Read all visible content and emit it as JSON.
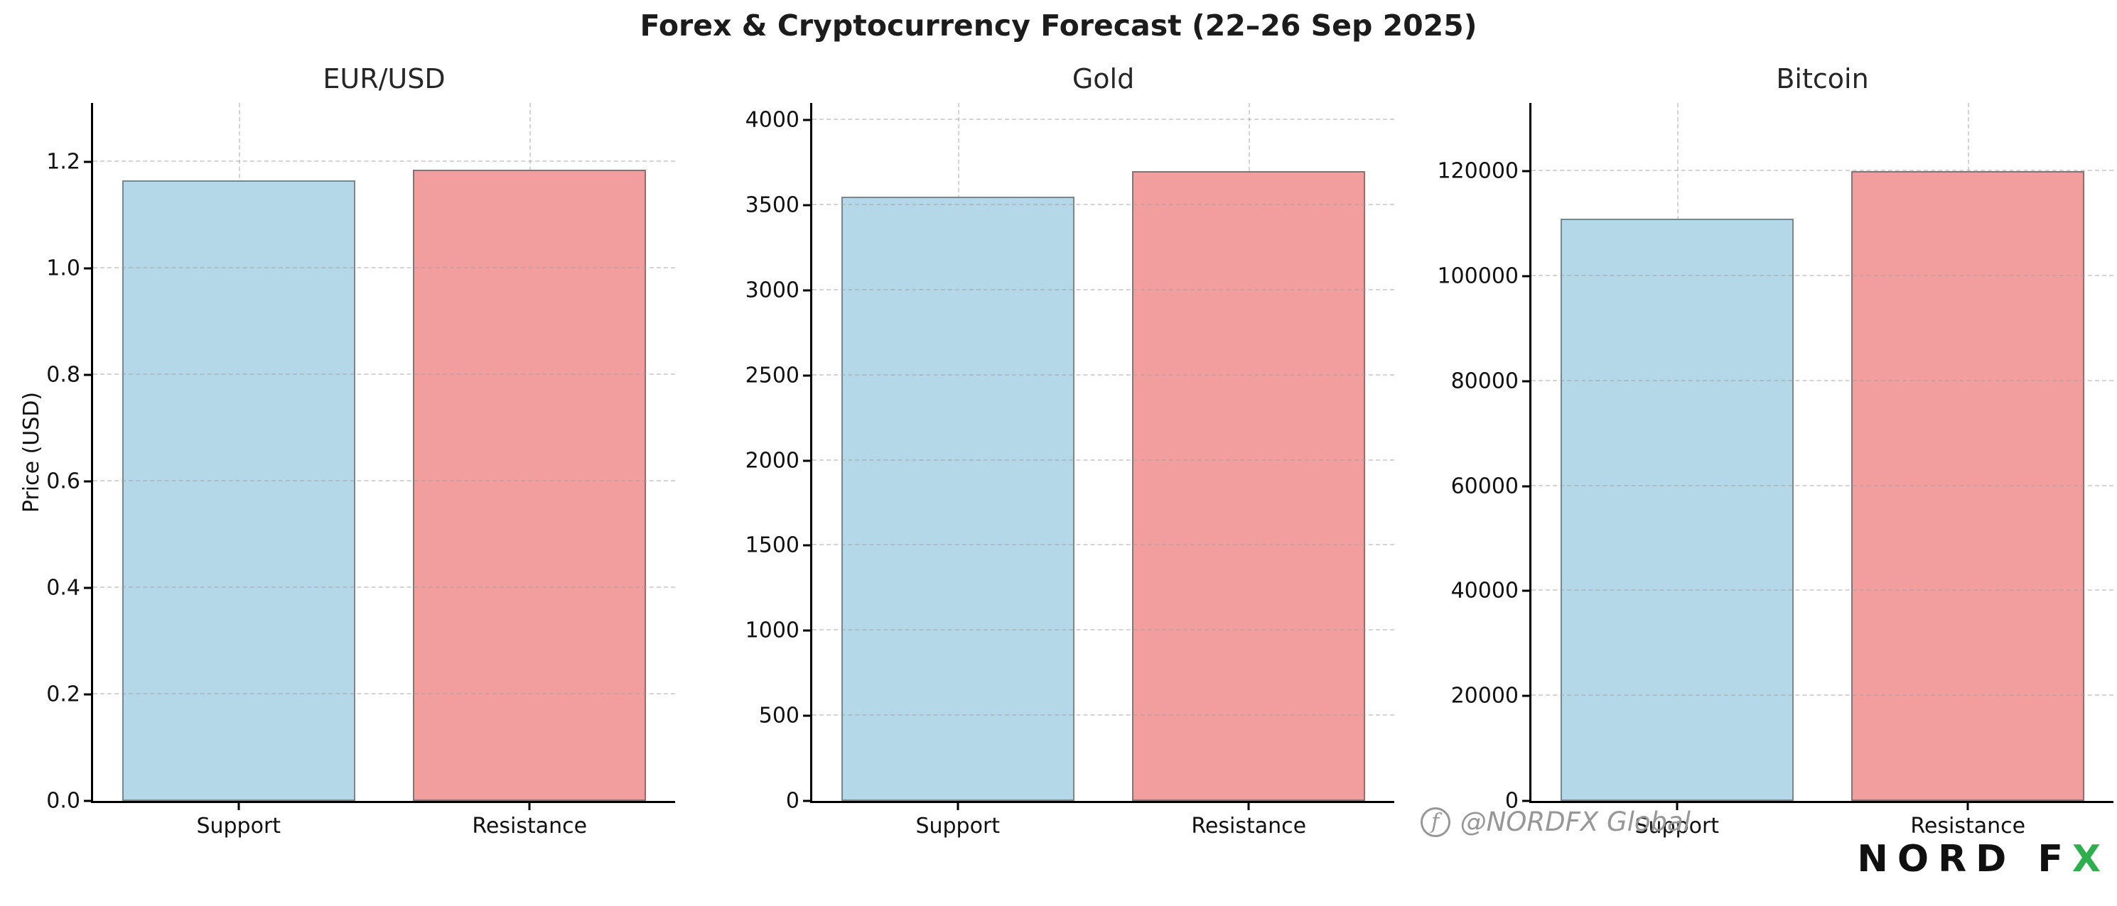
{
  "page": {
    "title": "Forex & Cryptocurrency Forecast (22–26 Sep 2025)"
  },
  "colors": {
    "support_fill": "#b5d8e8",
    "resistance_fill": "#f29e9e",
    "bar_edge": "#565656",
    "grid": "#a0a0a0",
    "spine": "#000000",
    "logo_accent": "#2fae4e"
  },
  "chart_data": [
    {
      "type": "bar",
      "title": "EUR/USD",
      "categories": [
        "Support",
        "Resistance"
      ],
      "values": [
        1.165,
        1.185
      ],
      "ylabel": "Price (USD)",
      "xlabel": "",
      "ylim": [
        0,
        1.31
      ],
      "yticks": [
        0.0,
        0.2,
        0.4,
        0.6,
        0.8,
        1.0,
        1.2
      ],
      "ytick_labels": [
        "0.0",
        "0.2",
        "0.4",
        "0.6",
        "0.8",
        "1.0",
        "1.2"
      ],
      "grid": "dashed",
      "legend": "none"
    },
    {
      "type": "bar",
      "title": "Gold",
      "categories": [
        "Support",
        "Resistance"
      ],
      "values": [
        3550,
        3700
      ],
      "ylabel": "",
      "xlabel": "",
      "ylim": [
        0,
        4100
      ],
      "yticks": [
        0,
        500,
        1000,
        1500,
        2000,
        2500,
        3000,
        3500,
        4000
      ],
      "ytick_labels": [
        "0",
        "500",
        "1000",
        "1500",
        "2000",
        "2500",
        "3000",
        "3500",
        "4000"
      ],
      "grid": "dashed",
      "legend": "none"
    },
    {
      "type": "bar",
      "title": "Bitcoin",
      "categories": [
        "Support",
        "Resistance"
      ],
      "values": [
        111000,
        120000
      ],
      "ylabel": "",
      "xlabel": "",
      "ylim": [
        0,
        133000
      ],
      "yticks": [
        0,
        20000,
        40000,
        60000,
        80000,
        100000,
        120000
      ],
      "ytick_labels": [
        "0",
        "20000",
        "40000",
        "60000",
        "80000",
        "100000",
        "120000"
      ],
      "grid": "dashed",
      "legend": "none"
    }
  ],
  "watermark": {
    "social_handle": "@NORDFX Global",
    "social_icon": "facebook-icon",
    "logo_text": "NORD F",
    "logo_accent": "X"
  }
}
